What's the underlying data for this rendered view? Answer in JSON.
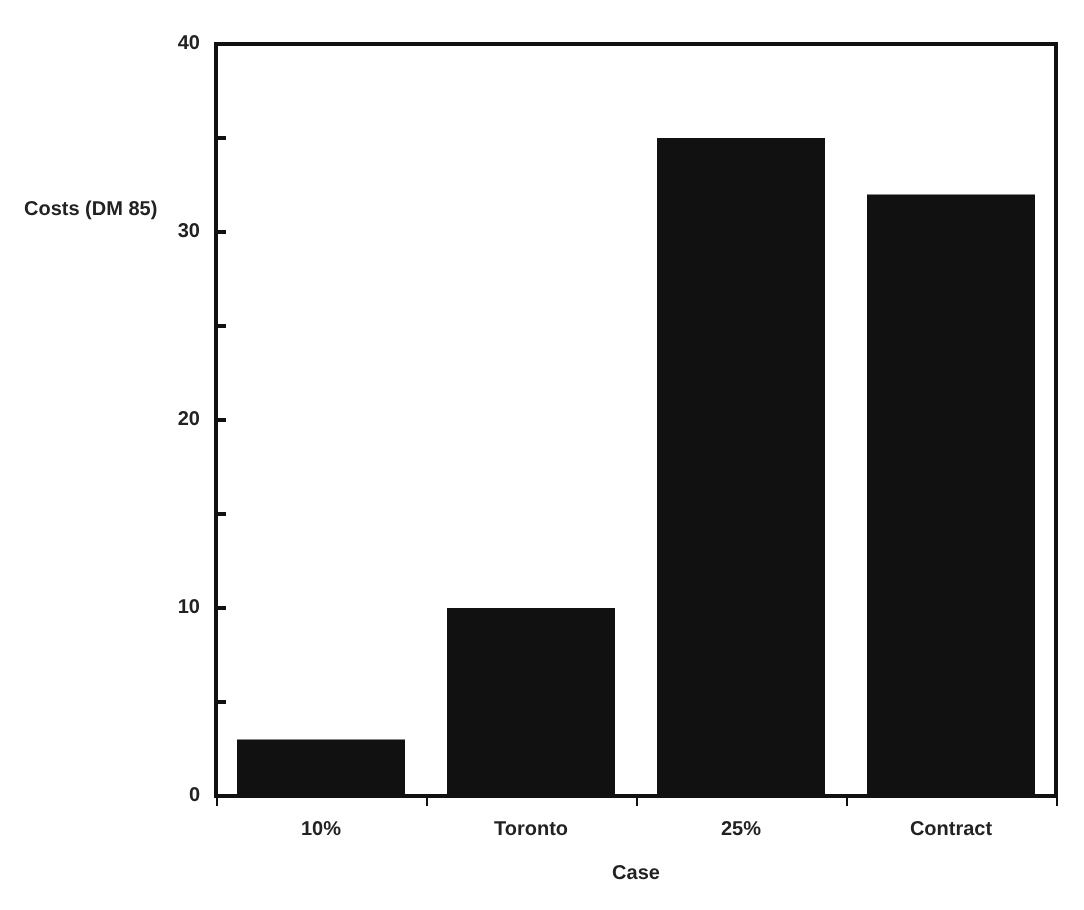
{
  "chart_data": {
    "type": "bar",
    "xlabel": "Case",
    "ylabel": "Costs (DM 85)",
    "categories": [
      "10%",
      "Toronto",
      "25%",
      "Contract"
    ],
    "values": [
      3,
      10,
      35,
      32
    ],
    "color": "#111111",
    "ylim": [
      0,
      40
    ],
    "yticks": [
      0,
      {
        "value": 5,
        "label": null
      },
      10,
      {
        "value": 15,
        "label": null
      },
      20,
      {
        "value": 25,
        "label": null
      },
      30,
      {
        "value": 35,
        "label": null
      },
      40
    ],
    "grid": false
  }
}
